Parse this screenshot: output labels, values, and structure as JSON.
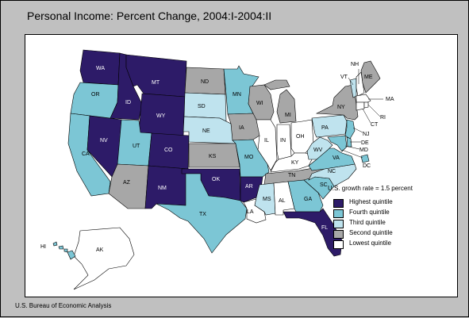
{
  "title": "Personal Income: Percent Change, 2004:I-2004:II",
  "source": "U.S. Bureau of Economic Analysis",
  "legend": {
    "note": "U.S. growth rate = 1.5 percent",
    "items": [
      {
        "label": "Highest quintile",
        "color": "#2d1b68"
      },
      {
        "label": "Fourth quintile",
        "color": "#7cc6d5"
      },
      {
        "label": "Third quintile",
        "color": "#bfe3ee"
      },
      {
        "label": "Second quintile",
        "color": "#a7a7a7"
      },
      {
        "label": "Lowest quintile",
        "color": "#ffffff"
      }
    ]
  },
  "states": [
    {
      "abbr": "WA",
      "quintile": "Highest quintile"
    },
    {
      "abbr": "OR",
      "quintile": "Fourth quintile"
    },
    {
      "abbr": "CA",
      "quintile": "Fourth quintile"
    },
    {
      "abbr": "NV",
      "quintile": "Highest quintile"
    },
    {
      "abbr": "ID",
      "quintile": "Highest quintile"
    },
    {
      "abbr": "MT",
      "quintile": "Highest quintile"
    },
    {
      "abbr": "WY",
      "quintile": "Highest quintile"
    },
    {
      "abbr": "UT",
      "quintile": "Fourth quintile"
    },
    {
      "abbr": "AZ",
      "quintile": "Second quintile"
    },
    {
      "abbr": "CO",
      "quintile": "Highest quintile"
    },
    {
      "abbr": "NM",
      "quintile": "Highest quintile"
    },
    {
      "abbr": "ND",
      "quintile": "Second quintile"
    },
    {
      "abbr": "SD",
      "quintile": "Third quintile"
    },
    {
      "abbr": "NE",
      "quintile": "Third quintile"
    },
    {
      "abbr": "KS",
      "quintile": "Second quintile"
    },
    {
      "abbr": "OK",
      "quintile": "Highest quintile"
    },
    {
      "abbr": "TX",
      "quintile": "Fourth quintile"
    },
    {
      "abbr": "MN",
      "quintile": "Fourth quintile"
    },
    {
      "abbr": "IA",
      "quintile": "Second quintile"
    },
    {
      "abbr": "MO",
      "quintile": "Fourth quintile"
    },
    {
      "abbr": "AR",
      "quintile": "Highest quintile"
    },
    {
      "abbr": "LA",
      "quintile": "Lowest quintile"
    },
    {
      "abbr": "WI",
      "quintile": "Second quintile"
    },
    {
      "abbr": "IL",
      "quintile": "Lowest quintile"
    },
    {
      "abbr": "MI",
      "quintile": "Second quintile"
    },
    {
      "abbr": "IN",
      "quintile": "Lowest quintile"
    },
    {
      "abbr": "OH",
      "quintile": "Lowest quintile"
    },
    {
      "abbr": "KY",
      "quintile": "Lowest quintile"
    },
    {
      "abbr": "TN",
      "quintile": "Second quintile"
    },
    {
      "abbr": "MS",
      "quintile": "Third quintile"
    },
    {
      "abbr": "AL",
      "quintile": "Lowest quintile"
    },
    {
      "abbr": "GA",
      "quintile": "Fourth quintile"
    },
    {
      "abbr": "FL",
      "quintile": "Highest quintile"
    },
    {
      "abbr": "SC",
      "quintile": "Fourth quintile"
    },
    {
      "abbr": "NC",
      "quintile": "Third quintile"
    },
    {
      "abbr": "VA",
      "quintile": "Fourth quintile"
    },
    {
      "abbr": "WV",
      "quintile": "Third quintile"
    },
    {
      "abbr": "PA",
      "quintile": "Third quintile"
    },
    {
      "abbr": "NY",
      "quintile": "Second quintile"
    },
    {
      "abbr": "VT",
      "quintile": "Third quintile"
    },
    {
      "abbr": "NH",
      "quintile": "Lowest quintile"
    },
    {
      "abbr": "ME",
      "quintile": "Second quintile"
    },
    {
      "abbr": "MA",
      "quintile": "Lowest quintile"
    },
    {
      "abbr": "RI",
      "quintile": "Lowest quintile"
    },
    {
      "abbr": "CT",
      "quintile": "Lowest quintile"
    },
    {
      "abbr": "NJ",
      "quintile": "Fourth quintile"
    },
    {
      "abbr": "DE",
      "quintile": "Fourth quintile"
    },
    {
      "abbr": "MD",
      "quintile": "Fourth quintile"
    },
    {
      "abbr": "DC",
      "quintile": "Fourth quintile"
    },
    {
      "abbr": "AK",
      "quintile": "Lowest quintile"
    },
    {
      "abbr": "HI",
      "quintile": "Fourth quintile"
    }
  ]
}
